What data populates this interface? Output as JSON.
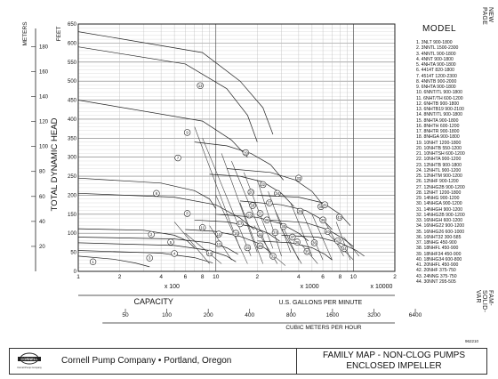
{
  "chart_data": {
    "type": "line",
    "title": "",
    "y_axis_left_label": "TOTAL DYNAMIC HEAD",
    "y_units_meters": "METERS",
    "y_units_feet": "FEET",
    "feet_ticks": [
      0,
      50,
      100,
      150,
      200,
      250,
      300,
      350,
      400,
      450,
      500,
      550,
      600,
      650
    ],
    "meter_ticks": [
      20,
      40,
      60,
      80,
      100,
      120,
      140,
      160,
      180
    ],
    "ylim_feet": [
      0,
      650
    ],
    "x_axis_label": "CAPACITY",
    "x_units_gpm": "U.S. GALLONS PER MINUTE",
    "x_units_m3h": "CUBIC METERS PER HOUR",
    "x_scale": "log",
    "xlim_gpm": [
      100,
      20000
    ],
    "x_tick_labels": [
      "1",
      "2",
      "4",
      "6",
      "8",
      "10",
      "2",
      "4",
      "6",
      "8",
      "10",
      "2",
      "4",
      "6",
      "8",
      "10",
      "2"
    ],
    "x_multipliers": [
      "x 100",
      "x 1000",
      "x 10000"
    ],
    "m3h_ticks": [
      "50",
      "100",
      "200",
      "400",
      "800",
      "1600",
      "3200",
      "6400"
    ],
    "grid": true,
    "curve_labels": [
      {
        "id": "1",
        "q": 128,
        "h": 25
      },
      {
        "id": "2",
        "q": 340,
        "h": 97
      },
      {
        "id": "3",
        "q": 330,
        "h": 35
      },
      {
        "id": "4",
        "q": 500,
        "h": 47
      },
      {
        "id": "5",
        "q": 470,
        "h": 77
      },
      {
        "id": "6",
        "q": 370,
        "h": 205
      },
      {
        "id": "7",
        "q": 530,
        "h": 298
      },
      {
        "id": "8",
        "q": 620,
        "h": 152
      },
      {
        "id": "9",
        "q": 620,
        "h": 365
      },
      {
        "id": "10",
        "q": 1050,
        "h": 98
      },
      {
        "id": "11",
        "q": 800,
        "h": 115
      },
      {
        "id": "12",
        "q": 1050,
        "h": 72
      },
      {
        "id": "13",
        "q": 770,
        "h": 488
      },
      {
        "id": "14",
        "q": 900,
        "h": 48
      },
      {
        "id": "15",
        "q": 1700,
        "h": 62
      },
      {
        "id": "16",
        "q": 1400,
        "h": 100
      },
      {
        "id": "17",
        "q": 1500,
        "h": 125
      },
      {
        "id": "18",
        "q": 1850,
        "h": 173
      },
      {
        "id": "19",
        "q": 1650,
        "h": 312
      },
      {
        "id": "20",
        "q": 1800,
        "h": 208
      },
      {
        "id": "21",
        "q": 2100,
        "h": 152
      },
      {
        "id": "22",
        "q": 2200,
        "h": 228
      },
      {
        "id": "23",
        "q": 1750,
        "h": 148
      },
      {
        "id": "24",
        "q": 2700,
        "h": 102
      },
      {
        "id": "25",
        "q": 2100,
        "h": 67
      },
      {
        "id": "26",
        "q": 2350,
        "h": 135
      },
      {
        "id": "27",
        "q": 2450,
        "h": 180
      },
      {
        "id": "28",
        "q": 3900,
        "h": 77
      },
      {
        "id": "29",
        "q": 4100,
        "h": 158
      },
      {
        "id": "30",
        "q": 3100,
        "h": 118
      },
      {
        "id": "31",
        "q": 2600,
        "h": 40
      },
      {
        "id": "32",
        "q": 2100,
        "h": 98
      },
      {
        "id": "33",
        "q": 4000,
        "h": 245
      },
      {
        "id": "34",
        "q": 2800,
        "h": 205
      },
      {
        "id": "35",
        "q": 4600,
        "h": 52
      },
      {
        "id": "36",
        "q": 5200,
        "h": 75
      },
      {
        "id": "37",
        "q": 3600,
        "h": 90
      },
      {
        "id": "38",
        "q": 5800,
        "h": 170
      },
      {
        "id": "39",
        "q": 6000,
        "h": 135
      },
      {
        "id": "40",
        "q": 6500,
        "h": 105
      },
      {
        "id": "41",
        "q": 6200,
        "h": 175
      },
      {
        "id": "42",
        "q": 7700,
        "h": 80
      },
      {
        "id": "43",
        "q": 7900,
        "h": 142
      },
      {
        "id": "44",
        "q": 8600,
        "h": 60
      }
    ],
    "curves": [
      {
        "id": "1",
        "points": [
          [
            100,
            40
          ],
          [
            180,
            32
          ],
          [
            260,
            22
          ],
          [
            330,
            12
          ]
        ]
      },
      {
        "id": "2",
        "points": [
          [
            100,
            112
          ],
          [
            300,
            108
          ],
          [
            500,
            95
          ],
          [
            620,
            80
          ],
          [
            700,
            62
          ]
        ]
      },
      {
        "id": "3",
        "points": [
          [
            100,
            55
          ],
          [
            400,
            48
          ],
          [
            700,
            36
          ],
          [
            950,
            22
          ]
        ]
      },
      {
        "id": "4",
        "points": [
          [
            100,
            75
          ],
          [
            500,
            68
          ],
          [
            900,
            55
          ],
          [
            1200,
            40
          ],
          [
            1400,
            25
          ]
        ]
      },
      {
        "id": "5",
        "points": [
          [
            100,
            90
          ],
          [
            500,
            85
          ],
          [
            900,
            75
          ],
          [
            1200,
            62
          ],
          [
            1450,
            45
          ]
        ]
      },
      {
        "id": "6",
        "points": [
          [
            100,
            245
          ],
          [
            400,
            232
          ],
          [
            700,
            212
          ],
          [
            900,
            190
          ],
          [
            1000,
            165
          ]
        ]
      },
      {
        "id": "7",
        "points": [
          [
            100,
            450
          ],
          [
            800,
            395
          ],
          [
            1300,
            345
          ],
          [
            1700,
            300
          ]
        ]
      },
      {
        "id": "8",
        "points": [
          [
            100,
            205
          ],
          [
            500,
            195
          ],
          [
            1000,
            175
          ],
          [
            1500,
            140
          ],
          [
            1900,
            110
          ]
        ]
      },
      {
        "id": "9",
        "points": [
          [
            100,
            590
          ],
          [
            600,
            545
          ],
          [
            1200,
            480
          ],
          [
            1700,
            410
          ],
          [
            2000,
            340
          ]
        ]
      },
      {
        "id": "13",
        "points": [
          [
            100,
            630
          ],
          [
            800,
            575
          ],
          [
            1500,
            500
          ],
          [
            2200,
            430
          ],
          [
            2600,
            360
          ]
        ]
      },
      {
        "id": "19",
        "points": [
          [
            700,
            340
          ],
          [
            1200,
            330
          ],
          [
            1800,
            310
          ],
          [
            2500,
            280
          ],
          [
            3100,
            240
          ]
        ]
      },
      {
        "id": "22",
        "points": [
          [
            900,
            255
          ],
          [
            1500,
            250
          ],
          [
            2200,
            235
          ],
          [
            3000,
            205
          ],
          [
            3700,
            170
          ]
        ]
      },
      {
        "id": "33",
        "points": [
          [
            1200,
            270
          ],
          [
            2500,
            260
          ],
          [
            3800,
            240
          ],
          [
            5000,
            210
          ],
          [
            6000,
            175
          ]
        ]
      },
      {
        "id": "38",
        "points": [
          [
            2000,
            200
          ],
          [
            4000,
            195
          ],
          [
            6000,
            180
          ],
          [
            8000,
            150
          ],
          [
            9500,
            120
          ]
        ]
      },
      {
        "id": "29",
        "points": [
          [
            1500,
            185
          ],
          [
            3000,
            175
          ],
          [
            4500,
            160
          ],
          [
            6000,
            135
          ],
          [
            7000,
            110
          ]
        ]
      },
      {
        "id": "24",
        "points": [
          [
            1000,
            150
          ],
          [
            2000,
            142
          ],
          [
            3000,
            125
          ],
          [
            4000,
            100
          ],
          [
            4700,
            80
          ]
        ]
      },
      {
        "id": "40",
        "points": [
          [
            2500,
            135
          ],
          [
            4500,
            128
          ],
          [
            6500,
            110
          ],
          [
            8500,
            85
          ],
          [
            10000,
            65
          ]
        ]
      },
      {
        "id": "44",
        "points": [
          [
            3000,
            95
          ],
          [
            5500,
            90
          ],
          [
            8000,
            75
          ],
          [
            10500,
            55
          ],
          [
            12000,
            40
          ]
        ]
      },
      {
        "id": "12",
        "points": [
          [
            600,
            110
          ],
          [
            1000,
            105
          ],
          [
            1500,
            92
          ],
          [
            2000,
            75
          ],
          [
            2400,
            55
          ]
        ]
      },
      {
        "id": "16",
        "points": [
          [
            700,
            135
          ],
          [
            1200,
            130
          ],
          [
            1800,
            118
          ],
          [
            2400,
            100
          ],
          [
            2900,
            80
          ]
        ]
      },
      {
        "id": "35",
        "points": [
          [
            2000,
            80
          ],
          [
            3500,
            75
          ],
          [
            5000,
            62
          ],
          [
            6200,
            45
          ],
          [
            7000,
            30
          ]
        ]
      }
    ],
    "system_lines": [
      [
        [
          700,
          380
        ],
        [
          1500,
          60
        ]
      ],
      [
        [
          800,
          350
        ],
        [
          1800,
          40
        ]
      ],
      [
        [
          1100,
          310
        ],
        [
          2000,
          50
        ]
      ],
      [
        [
          1300,
          290
        ],
        [
          2500,
          40
        ]
      ],
      [
        [
          1600,
          260
        ],
        [
          2600,
          60
        ]
      ],
      [
        [
          2000,
          240
        ],
        [
          3000,
          40
        ]
      ],
      [
        [
          2400,
          210
        ],
        [
          3500,
          50
        ]
      ],
      [
        [
          1000,
          200
        ],
        [
          1700,
          20
        ]
      ],
      [
        [
          1500,
          180
        ],
        [
          2200,
          20
        ]
      ],
      [
        [
          2700,
          160
        ],
        [
          4000,
          30
        ]
      ],
      [
        [
          3500,
          180
        ],
        [
          5000,
          40
        ]
      ],
      [
        [
          4200,
          160
        ],
        [
          6000,
          30
        ]
      ],
      [
        [
          5000,
          150
        ],
        [
          7000,
          30
        ]
      ],
      [
        [
          6000,
          140
        ],
        [
          8500,
          40
        ]
      ],
      [
        [
          7500,
          130
        ],
        [
          9500,
          30
        ]
      ],
      [
        [
          500,
          130
        ],
        [
          900,
          20
        ]
      ],
      [
        [
          600,
          100
        ],
        [
          1100,
          20
        ]
      ],
      [
        [
          900,
          120
        ],
        [
          1300,
          30
        ]
      ],
      [
        [
          1900,
          120
        ],
        [
          2800,
          20
        ]
      ],
      [
        [
          3000,
          110
        ],
        [
          4200,
          20
        ]
      ],
      [
        [
          6500,
          100
        ],
        [
          10000,
          30
        ]
      ],
      [
        [
          8500,
          90
        ],
        [
          11000,
          40
        ]
      ],
      [
        [
          4200,
          70
        ],
        [
          5500,
          20
        ]
      ],
      [
        [
          2300,
          60
        ],
        [
          3200,
          15
        ]
      ]
    ]
  },
  "model_list": {
    "heading": "MODEL",
    "items": [
      "1. 3NLT  900-1800",
      "2. 3NNTL  1500-2300",
      "3. 4NNTL  900-1800",
      "4. 4NNT  900-1800",
      "5. 4NHTA  900-1800",
      "6. 4414T  820-1800",
      "7. 4514T  1200-2300",
      "8. 4NNTB  900-2000",
      "9. 6NHTA  900-1800",
      "10. 6NNT/TL 900-1800",
      "11. 6NHT/TH 600-1200",
      "12. 6NHTB  900-1800",
      "13. 6NHTB19 900-2100",
      "14. 8NNT/TL 900-1800",
      "15. 8NHTA  900-1800",
      "16. 8NHTH  600-1200",
      "17. 8NHTR  900-1800",
      "18. 8NHGA  900-1800",
      "19. 10NHT  1200-1800",
      "20. 10NHTB 550-1200",
      "21. 10NHTSH 600-1200",
      "22. 10NHTA  900-1200",
      "23. 12NHTB 900-1800",
      "24. 12NHTL 900-1200",
      "25. 12NHTM 900-1200",
      "26. 12NHF  900-1200",
      "27. 12NHG2B 900-1200",
      "28. 12NHT  1200-1800",
      "29. 14NHG  900-1200",
      "30. 14NHGA 900-1200",
      "31. 14NHGH 900-1200",
      "32. 14NHG2B 900-1200",
      "33. 16NHGH 600-1200",
      "34. 16NHG22 900-1200",
      "35. 16NHG26 600-1000",
      "36. 16NHT32 300-585",
      "37. 18NHG  450-900",
      "38. 18NHFL  450-900",
      "39. 18NHF34 450-900",
      "40. 18NHG34 600-800",
      "41. 20NHFL  450-900",
      "42. 20NHF  375-750",
      "43. 24NNG  375-750",
      "44. 30NNT  295-505"
    ]
  },
  "side_labels": {
    "top_right": "NEW PAGE",
    "bottom_right": "FAM-SOLID-VAR"
  },
  "footer": {
    "logo_text": "CORNELL",
    "logo_subtext": "Cornell Pump Company",
    "company": "Cornell Pump Company  •  Portland, Oregon",
    "title_line1": "FAMILY MAP - NON-CLOG PUMPS",
    "title_line2": "ENCLOSED IMPELLER",
    "doc_number": "962210"
  }
}
